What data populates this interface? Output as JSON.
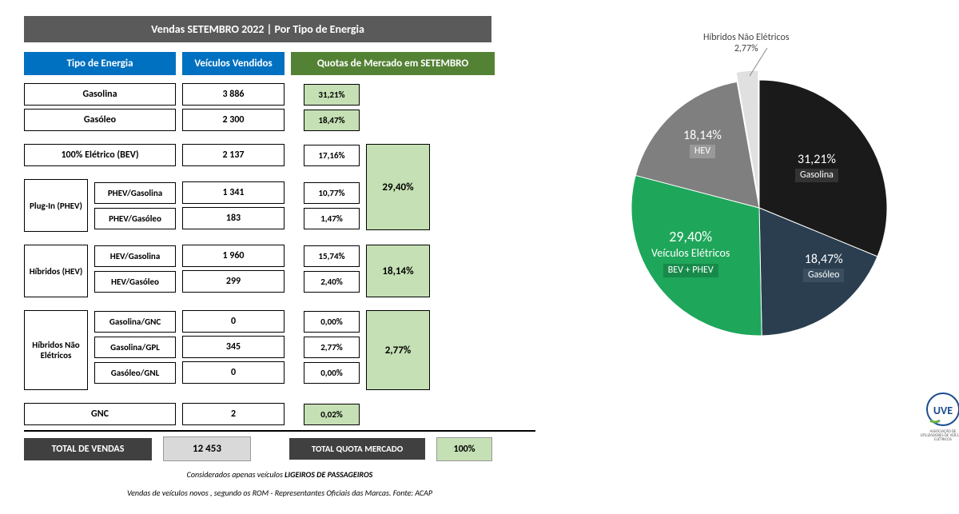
{
  "title": "Vendas SETEMBRO 2022 | Por Tipo de Energia",
  "headers": {
    "tipo": "Tipo de Energia",
    "veiculos": "Veículos Vendidos",
    "quotas": "Quotas de Mercado em SETEMBRO"
  },
  "rows": {
    "gasolina": {
      "label": "Gasolina",
      "value": "3 886",
      "pct": "31,21%"
    },
    "gasoleo": {
      "label": "Gasóleo",
      "value": "2 300",
      "pct": "18,47%"
    },
    "bev": {
      "label": "100% Elétrico (BEV)",
      "value": "2 137",
      "pct": "17,16%"
    },
    "gnc": {
      "label": "GNC",
      "value": "2",
      "pct": "0,02%"
    }
  },
  "groups": {
    "phev": {
      "side": "Plug-In (PHEV)",
      "group_pct": "29,40%",
      "items": [
        {
          "label": "PHEV/Gasolina",
          "value": "1 341",
          "pct": "10,77%"
        },
        {
          "label": "PHEV/Gasóleo",
          "value": "183",
          "pct": "1,47%"
        }
      ]
    },
    "hev": {
      "side": "Híbridos (HEV)",
      "group_pct": "18,14%",
      "items": [
        {
          "label": "HEV/Gasolina",
          "value": "1 960",
          "pct": "15,74%"
        },
        {
          "label": "HEV/Gasóleo",
          "value": "299",
          "pct": "2,40%"
        }
      ]
    },
    "hne": {
      "side": "Híbridos Não Elétricos",
      "group_pct": "2,77%",
      "items": [
        {
          "label": "Gasolina/GNC",
          "value": "0",
          "pct": "0,00%"
        },
        {
          "label": "Gasolina/GPL",
          "value": "345",
          "pct": "2,77%"
        },
        {
          "label": "Gasóleo/GNL",
          "value": "0",
          "pct": "0,00%"
        }
      ]
    }
  },
  "totals": {
    "vendas_label": "TOTAL DE VENDAS",
    "vendas_value": "12 453",
    "quota_label": "TOTAL QUOTA MERCADO",
    "quota_value": "100%"
  },
  "footnotes": {
    "line1_a": "Considerados apenas veículos ",
    "line1_b": "LIGEIROS DE PASSAGEIROS",
    "line2": "Vendas de veículos  novos , segundo os ROM - Representantes Oficiais das Marcas. Fonte: ACAP"
  },
  "pie": {
    "callout": {
      "title": "Híbridos Não Elétricos",
      "value": "2,77%"
    },
    "slices": [
      {
        "name": "Gasolina",
        "pct_num": 31.21,
        "pct": "31,21%",
        "color": "#1a1a1a",
        "text": "dark"
      },
      {
        "name": "Gasóleo",
        "pct_num": 18.47,
        "pct": "18,47%",
        "color": "#2a3e50",
        "text": "dark"
      },
      {
        "name": "Veículos Elétricos",
        "sub": "BEV + PHEV",
        "pct_num": 29.4,
        "pct": "29,40%",
        "color": "#1ea65a",
        "text": "dark"
      },
      {
        "name": "HEV",
        "pct_num": 18.14,
        "pct": "18,14%",
        "color": "#7f7f7f",
        "text": "dark"
      },
      {
        "name": "Híbridos Não Elétricos",
        "pct_num": 2.77,
        "pct": "2,77%",
        "color": "#e0e0e0",
        "text": "light"
      }
    ],
    "background": "#ffffff"
  },
  "logo": {
    "text": "UVE",
    "sub": "ASSOCIAÇÃO DE UTILIZADORES DE VEÍCULOS ELÉTRICOS"
  },
  "colors": {
    "blue": "#0070c0",
    "dark_green": "#548235",
    "light_green": "#c5e0b4",
    "dark_grey": "#5a5a5a",
    "total_grey": "#d9d9d9"
  }
}
